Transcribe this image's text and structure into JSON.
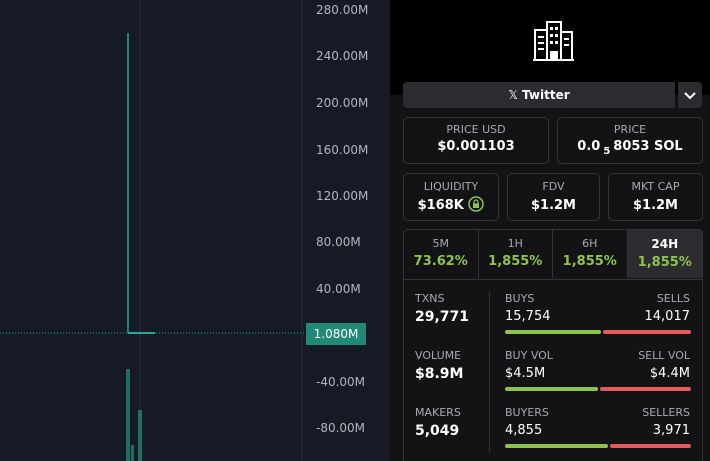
{
  "chart": {
    "axis_labels": [
      "280.00M",
      "240.00M",
      "200.00M",
      "160.00M",
      "120.00M",
      "80.00M",
      "40.00M",
      "-40.00M",
      "-80.00M"
    ],
    "current_price": "1.080M"
  },
  "social": {
    "button": "Twitter"
  },
  "price_usd": {
    "label": "PRICE USD",
    "value": "$0.001103"
  },
  "price_sol": {
    "label": "PRICE",
    "value_prefix": "0.0",
    "value_sub": "5",
    "value_suffix": "8053 SOL"
  },
  "stats": [
    {
      "label": "LIQUIDITY",
      "value": "$168K"
    },
    {
      "label": "FDV",
      "value": "$1.2M"
    },
    {
      "label": "MKT CAP",
      "value": "$1.2M"
    }
  ],
  "timeframes": [
    {
      "label": "5M",
      "change": "73.62%"
    },
    {
      "label": "1H",
      "change": "1,855%"
    },
    {
      "label": "6H",
      "change": "1,855%"
    },
    {
      "label": "24H",
      "change": "1,855%"
    }
  ],
  "txns": [
    {
      "total_label": "TXNS",
      "total": "29,771",
      "left_label": "BUYS",
      "left": "15,754",
      "right_label": "SELLS",
      "right": "14,017"
    },
    {
      "total_label": "VOLUME",
      "total": "$8.9M",
      "left_label": "BUY VOL",
      "left": "$4.5M",
      "right_label": "SELL VOL",
      "right": "$4.4M"
    },
    {
      "total_label": "MAKERS",
      "total": "5,049",
      "left_label": "BUYERS",
      "left": "4,855",
      "right_label": "SELLERS",
      "right": "3,971"
    }
  ]
}
